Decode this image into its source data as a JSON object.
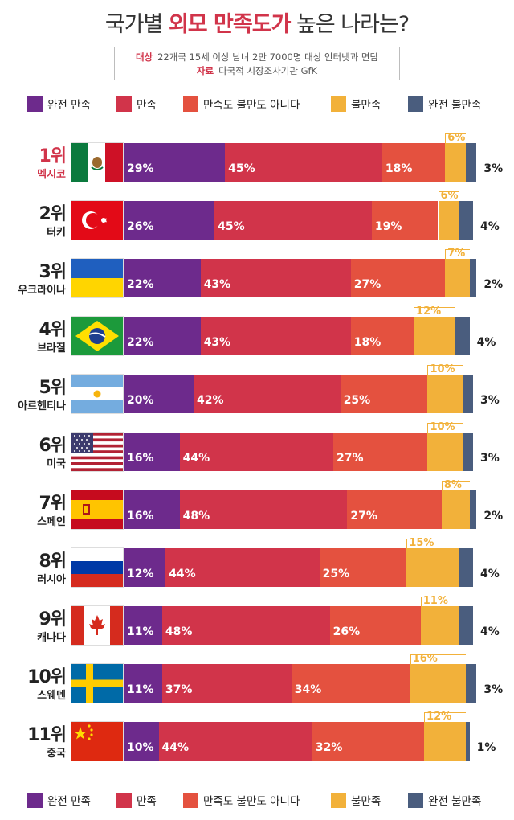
{
  "title": {
    "part1": "국가별 ",
    "highlight": "외모 만족도가",
    "part2": " 높은 나라는?"
  },
  "source": {
    "target_label": "대상",
    "target_text": "22개국 15세 이상 남녀 2만 7000명 대상 인터넷과 면담",
    "data_label": "자료",
    "data_text": "다국적 시장조사기관 GfK"
  },
  "legend": [
    {
      "label": "완전 만족",
      "color": "#6d2a8c"
    },
    {
      "label": "만족",
      "color": "#d1344a"
    },
    {
      "label": "만족도 불만도 아니다",
      "color": "#e4513f"
    },
    {
      "label": "불만족",
      "color": "#f2b13a"
    },
    {
      "label": "완전 불만족",
      "color": "#4a5d7e"
    }
  ],
  "chart_data": {
    "type": "bar",
    "orientation": "horizontal",
    "stacked": true,
    "unit": "%",
    "series_names": [
      "완전 만족",
      "만족",
      "만족도 불만도 아니다",
      "불만족",
      "완전 불만족"
    ],
    "rows": [
      {
        "rank": "1위",
        "country": "멕시코",
        "flag": "mexico",
        "values": [
          29,
          45,
          18,
          6,
          3
        ]
      },
      {
        "rank": "2위",
        "country": "터키",
        "flag": "turkey",
        "values": [
          26,
          45,
          19,
          6,
          4
        ]
      },
      {
        "rank": "3위",
        "country": "우크라이나",
        "flag": "ukraine",
        "values": [
          22,
          43,
          27,
          7,
          2
        ]
      },
      {
        "rank": "4위",
        "country": "브라질",
        "flag": "brazil",
        "values": [
          22,
          43,
          18,
          12,
          4
        ]
      },
      {
        "rank": "5위",
        "country": "아르헨티나",
        "flag": "argentina",
        "values": [
          20,
          42,
          25,
          10,
          3
        ]
      },
      {
        "rank": "6위",
        "country": "미국",
        "flag": "usa",
        "values": [
          16,
          44,
          27,
          10,
          3
        ]
      },
      {
        "rank": "7위",
        "country": "스페인",
        "flag": "spain",
        "values": [
          16,
          48,
          27,
          8,
          2
        ]
      },
      {
        "rank": "8위",
        "country": "러시아",
        "flag": "russia",
        "values": [
          12,
          44,
          25,
          15,
          4
        ]
      },
      {
        "rank": "9위",
        "country": "캐나다",
        "flag": "canada",
        "values": [
          11,
          48,
          26,
          11,
          4
        ]
      },
      {
        "rank": "10위",
        "country": "스웨덴",
        "flag": "sweden",
        "values": [
          11,
          37,
          34,
          16,
          3
        ]
      },
      {
        "rank": "11위",
        "country": "중국",
        "flag": "china",
        "values": [
          10,
          44,
          32,
          12,
          1
        ]
      }
    ]
  }
}
